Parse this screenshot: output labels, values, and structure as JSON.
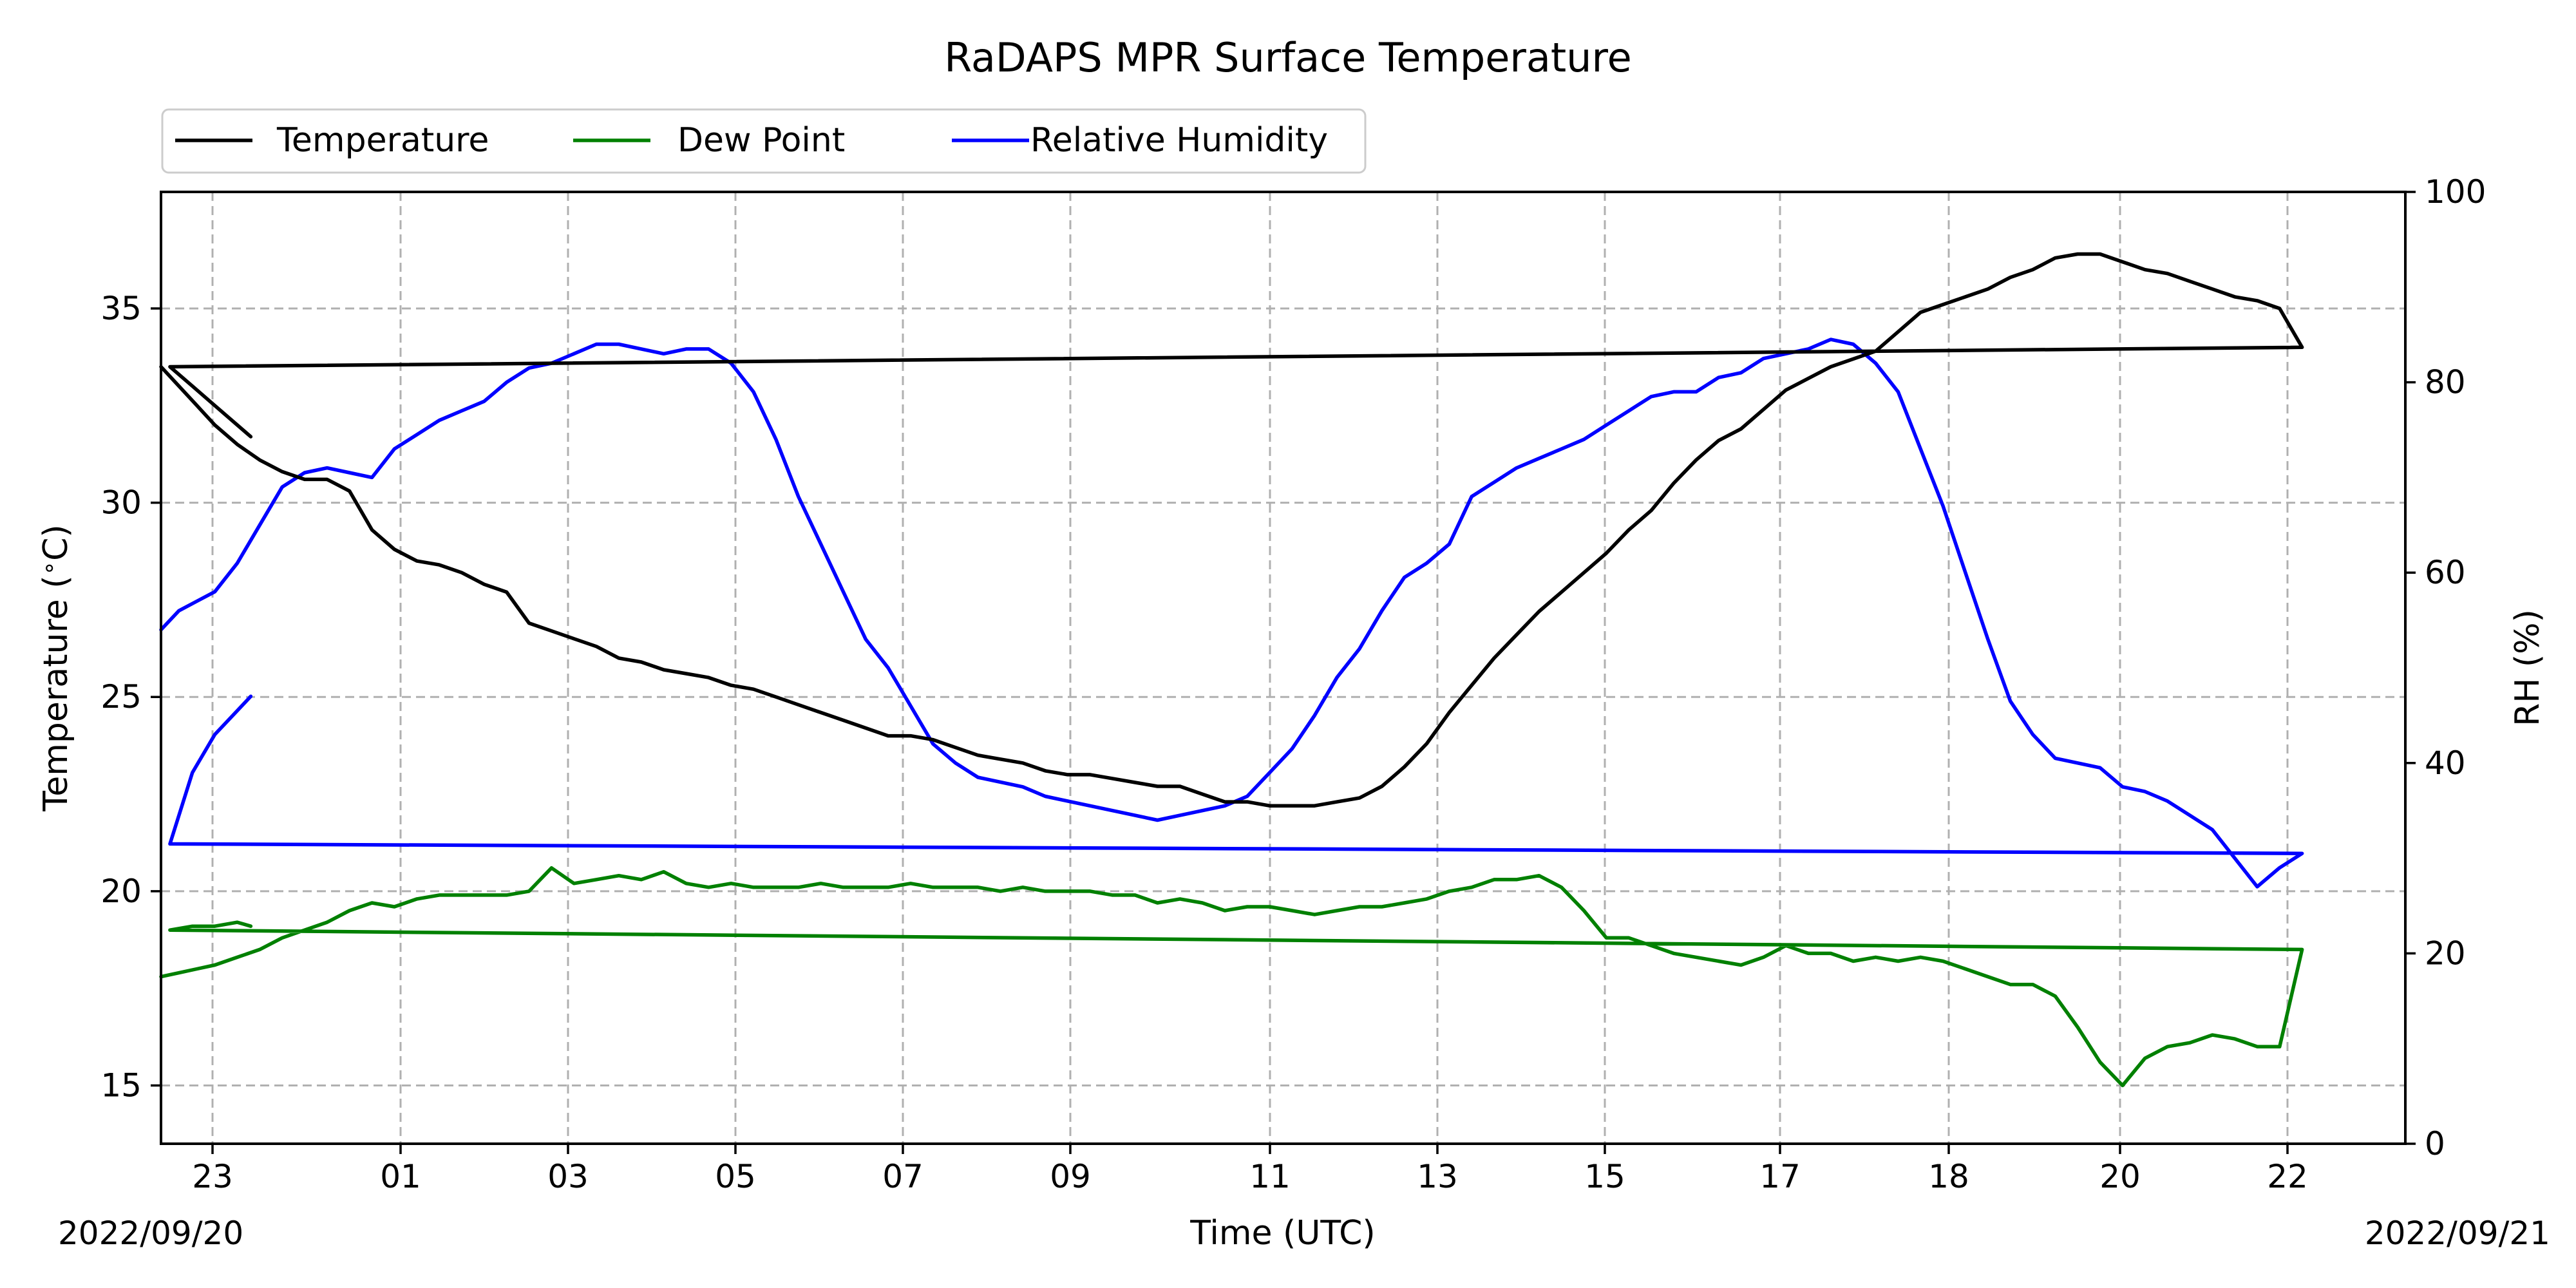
{
  "chart_data": {
    "type": "line",
    "title": "RaDAPS MPR Surface Temperature",
    "xlabel": "Time (UTC)",
    "ylabel_left": "Temperature ($^\\circ$C)",
    "ylabel_right": "RH (%)",
    "start_date_label": "2022/09/20",
    "end_date_label": "2022/09/21",
    "x_ticks": [
      "23",
      "01",
      "03",
      "05",
      "07",
      "09",
      "11",
      "13",
      "15",
      "17",
      "18",
      "20",
      "22"
    ],
    "ylim_left": [
      13.5,
      38.0
    ],
    "y_ticks_left": [
      15,
      20,
      25,
      30,
      35
    ],
    "ylim_right": [
      0,
      100
    ],
    "y_ticks_right": [
      0,
      20,
      40,
      60,
      80,
      100
    ],
    "grid": true,
    "legend_position": "top-left (above plot)",
    "series": [
      {
        "name": "Temperature",
        "axis": "left",
        "color": "#000000",
        "x": [
          "22:24",
          "22:36",
          "22:48",
          "23:00",
          "23:15",
          "23:30",
          "23:45",
          "00:00",
          "00:15",
          "00:30",
          "00:45",
          "01:00",
          "01:15",
          "01:30",
          "01:45",
          "02:00",
          "02:15",
          "02:30",
          "02:45",
          "03:00",
          "03:15",
          "03:30",
          "03:45",
          "04:00",
          "04:15",
          "04:30",
          "04:45",
          "05:00",
          "05:15",
          "05:30",
          "05:45",
          "06:00",
          "06:15",
          "06:30",
          "06:45",
          "07:00",
          "07:15",
          "07:30",
          "07:45",
          "08:00",
          "08:15",
          "08:30",
          "08:45",
          "09:00",
          "09:15",
          "09:30",
          "09:45",
          "10:00",
          "10:15",
          "10:30",
          "10:45",
          "11:00",
          "11:15",
          "11:30",
          "11:45",
          "12:00",
          "12:15",
          "12:30",
          "12:45",
          "13:00",
          "13:15",
          "13:30",
          "13:45",
          "14:00",
          "14:15",
          "14:30",
          "14:45",
          "15:00",
          "15:15",
          "15:30",
          "15:45",
          "16:00",
          "16:15",
          "16:30",
          "16:45",
          "17:00",
          "17:15",
          "17:30",
          "17:45",
          "18:00",
          "18:15",
          "18:30",
          "18:45",
          "19:00",
          "19:15",
          "19:30",
          "19:45",
          "20:00",
          "20:15",
          "20:30",
          "20:45",
          "21:00",
          "21:15",
          "21:30",
          "21:45",
          "22:00",
          "22:15",
          "22:30",
          "22:45",
          "23:00",
          "23:15",
          "23:24"
        ],
        "values": [
          33.5,
          33.0,
          32.5,
          32.0,
          31.5,
          31.1,
          30.8,
          30.6,
          30.6,
          30.3,
          29.3,
          28.8,
          28.5,
          28.4,
          28.2,
          27.9,
          27.7,
          26.9,
          26.7,
          26.5,
          26.3,
          26.0,
          25.9,
          25.7,
          25.6,
          25.5,
          25.3,
          25.2,
          25.0,
          24.8,
          24.6,
          24.4,
          24.2,
          24.0,
          24.0,
          23.9,
          23.7,
          23.5,
          23.4,
          23.3,
          23.1,
          23.0,
          23.0,
          22.9,
          22.8,
          22.7,
          22.7,
          22.5,
          22.3,
          22.3,
          22.2,
          22.2,
          22.2,
          22.3,
          22.4,
          22.7,
          23.2,
          23.8,
          24.6,
          25.3,
          26.0,
          26.6,
          27.2,
          27.7,
          28.2,
          28.7,
          29.3,
          29.8,
          30.5,
          31.1,
          31.6,
          31.9,
          32.4,
          32.9,
          33.2,
          33.5,
          33.7,
          33.9,
          34.4,
          34.9,
          35.1,
          35.3,
          35.5,
          35.8,
          36.0,
          36.3,
          36.4,
          36.4,
          36.2,
          36.0,
          35.9,
          35.7,
          35.5,
          35.3,
          35.2,
          35.0,
          34.0,
          33.5,
          33.0,
          32.5,
          32.0,
          31.7
        ]
      },
      {
        "name": "Dew Point",
        "axis": "left",
        "color": "#008000",
        "x": [
          "22:24",
          "22:36",
          "22:48",
          "23:00",
          "23:15",
          "23:30",
          "23:45",
          "00:00",
          "00:15",
          "00:30",
          "00:45",
          "01:00",
          "01:15",
          "01:30",
          "01:45",
          "02:00",
          "02:15",
          "02:30",
          "02:45",
          "03:00",
          "03:15",
          "03:30",
          "03:45",
          "04:00",
          "04:15",
          "04:30",
          "04:45",
          "05:00",
          "05:15",
          "05:30",
          "05:45",
          "06:00",
          "06:15",
          "06:30",
          "06:45",
          "07:00",
          "07:15",
          "07:30",
          "07:45",
          "08:00",
          "08:15",
          "08:30",
          "08:45",
          "09:00",
          "09:15",
          "09:30",
          "09:45",
          "10:00",
          "10:15",
          "10:30",
          "10:45",
          "11:00",
          "11:15",
          "11:30",
          "11:45",
          "12:00",
          "12:15",
          "12:30",
          "12:45",
          "13:00",
          "13:15",
          "13:30",
          "13:45",
          "14:00",
          "14:15",
          "14:30",
          "14:45",
          "15:00",
          "15:15",
          "15:30",
          "15:45",
          "16:00",
          "16:15",
          "16:30",
          "16:45",
          "17:00",
          "17:15",
          "17:30",
          "17:45",
          "18:00",
          "18:15",
          "18:30",
          "18:45",
          "19:00",
          "19:15",
          "19:30",
          "19:45",
          "20:00",
          "20:15",
          "20:30",
          "20:45",
          "21:00",
          "21:15",
          "21:30",
          "21:45",
          "22:00",
          "22:15",
          "22:30",
          "22:45",
          "23:00",
          "23:15",
          "23:24"
        ],
        "values": [
          17.8,
          17.9,
          18.0,
          18.1,
          18.3,
          18.5,
          18.8,
          19.0,
          19.2,
          19.5,
          19.7,
          19.6,
          19.8,
          19.9,
          19.9,
          19.9,
          19.9,
          20.0,
          20.6,
          20.2,
          20.3,
          20.4,
          20.3,
          20.5,
          20.2,
          20.1,
          20.2,
          20.1,
          20.1,
          20.1,
          20.2,
          20.1,
          20.1,
          20.1,
          20.2,
          20.1,
          20.1,
          20.1,
          20.0,
          20.1,
          20.0,
          20.0,
          20.0,
          19.9,
          19.9,
          19.7,
          19.8,
          19.7,
          19.5,
          19.6,
          19.6,
          19.5,
          19.4,
          19.5,
          19.6,
          19.6,
          19.7,
          19.8,
          20.0,
          20.1,
          20.3,
          20.3,
          20.4,
          20.1,
          19.5,
          18.8,
          18.8,
          18.6,
          18.4,
          18.3,
          18.2,
          18.1,
          18.3,
          18.6,
          18.4,
          18.4,
          18.2,
          18.3,
          18.2,
          18.3,
          18.2,
          18.0,
          17.8,
          17.6,
          17.6,
          17.3,
          16.5,
          15.6,
          15.0,
          15.7,
          16.0,
          16.1,
          16.3,
          16.2,
          16.0,
          16.0,
          18.5,
          19.0,
          19.1,
          19.1,
          19.2,
          19.1
        ]
      },
      {
        "name": "Relative Humidity",
        "axis": "right",
        "color": "#0000ff",
        "x": [
          "22:24",
          "22:36",
          "22:48",
          "23:00",
          "23:15",
          "23:30",
          "23:45",
          "00:00",
          "00:15",
          "00:30",
          "00:45",
          "01:00",
          "01:15",
          "01:30",
          "01:45",
          "02:00",
          "02:15",
          "02:30",
          "02:45",
          "03:00",
          "03:15",
          "03:30",
          "03:45",
          "04:00",
          "04:15",
          "04:30",
          "04:45",
          "05:00",
          "05:15",
          "05:30",
          "05:45",
          "06:00",
          "06:15",
          "06:30",
          "06:45",
          "07:00",
          "07:15",
          "07:30",
          "07:45",
          "08:00",
          "08:15",
          "08:30",
          "08:45",
          "09:00",
          "09:15",
          "09:30",
          "09:45",
          "10:00",
          "10:15",
          "10:30",
          "10:45",
          "11:00",
          "11:15",
          "11:30",
          "11:45",
          "12:00",
          "12:15",
          "12:30",
          "12:45",
          "13:00",
          "13:15",
          "13:30",
          "13:45",
          "14:00",
          "14:15",
          "14:30",
          "14:45",
          "15:00",
          "15:15",
          "15:30",
          "15:45",
          "16:00",
          "16:15",
          "16:30",
          "16:45",
          "17:00",
          "17:15",
          "17:30",
          "17:45",
          "18:00",
          "18:15",
          "18:30",
          "18:45",
          "19:00",
          "19:15",
          "19:30",
          "19:45",
          "20:00",
          "20:15",
          "20:30",
          "20:45",
          "21:00",
          "21:15",
          "21:30",
          "21:45",
          "22:00",
          "22:15",
          "22:30",
          "22:45",
          "23:00",
          "23:15",
          "23:24"
        ],
        "values": [
          54.0,
          56.0,
          57.0,
          58.0,
          61.0,
          65.0,
          69.0,
          70.5,
          71.0,
          70.5,
          70.0,
          73.0,
          74.5,
          76.0,
          77.0,
          78.0,
          80.0,
          81.5,
          82.0,
          83.0,
          84.0,
          84.0,
          83.5,
          83.0,
          83.5,
          83.5,
          82.0,
          79.0,
          74.0,
          68.0,
          63.0,
          58.0,
          53.0,
          50.0,
          46.0,
          42.0,
          40.0,
          38.5,
          38.0,
          37.5,
          36.5,
          36.0,
          35.5,
          35.0,
          34.5,
          34.0,
          34.5,
          35.0,
          35.5,
          36.5,
          39.0,
          41.5,
          45.0,
          49.0,
          52.0,
          56.0,
          59.5,
          61.0,
          63.0,
          68.0,
          69.5,
          71.0,
          72.0,
          73.0,
          74.0,
          75.5,
          77.0,
          78.5,
          79.0,
          79.0,
          80.5,
          81.0,
          82.5,
          83.0,
          83.5,
          84.5,
          84.0,
          82.0,
          79.0,
          73.0,
          67.0,
          60.0,
          53.0,
          46.5,
          43.0,
          40.5,
          40.0,
          39.5,
          37.5,
          37.0,
          36.0,
          34.5,
          33.0,
          30.0,
          27.0,
          29.0,
          30.5,
          31.5,
          39.0,
          43.0,
          45.5,
          47.0
        ]
      }
    ]
  }
}
